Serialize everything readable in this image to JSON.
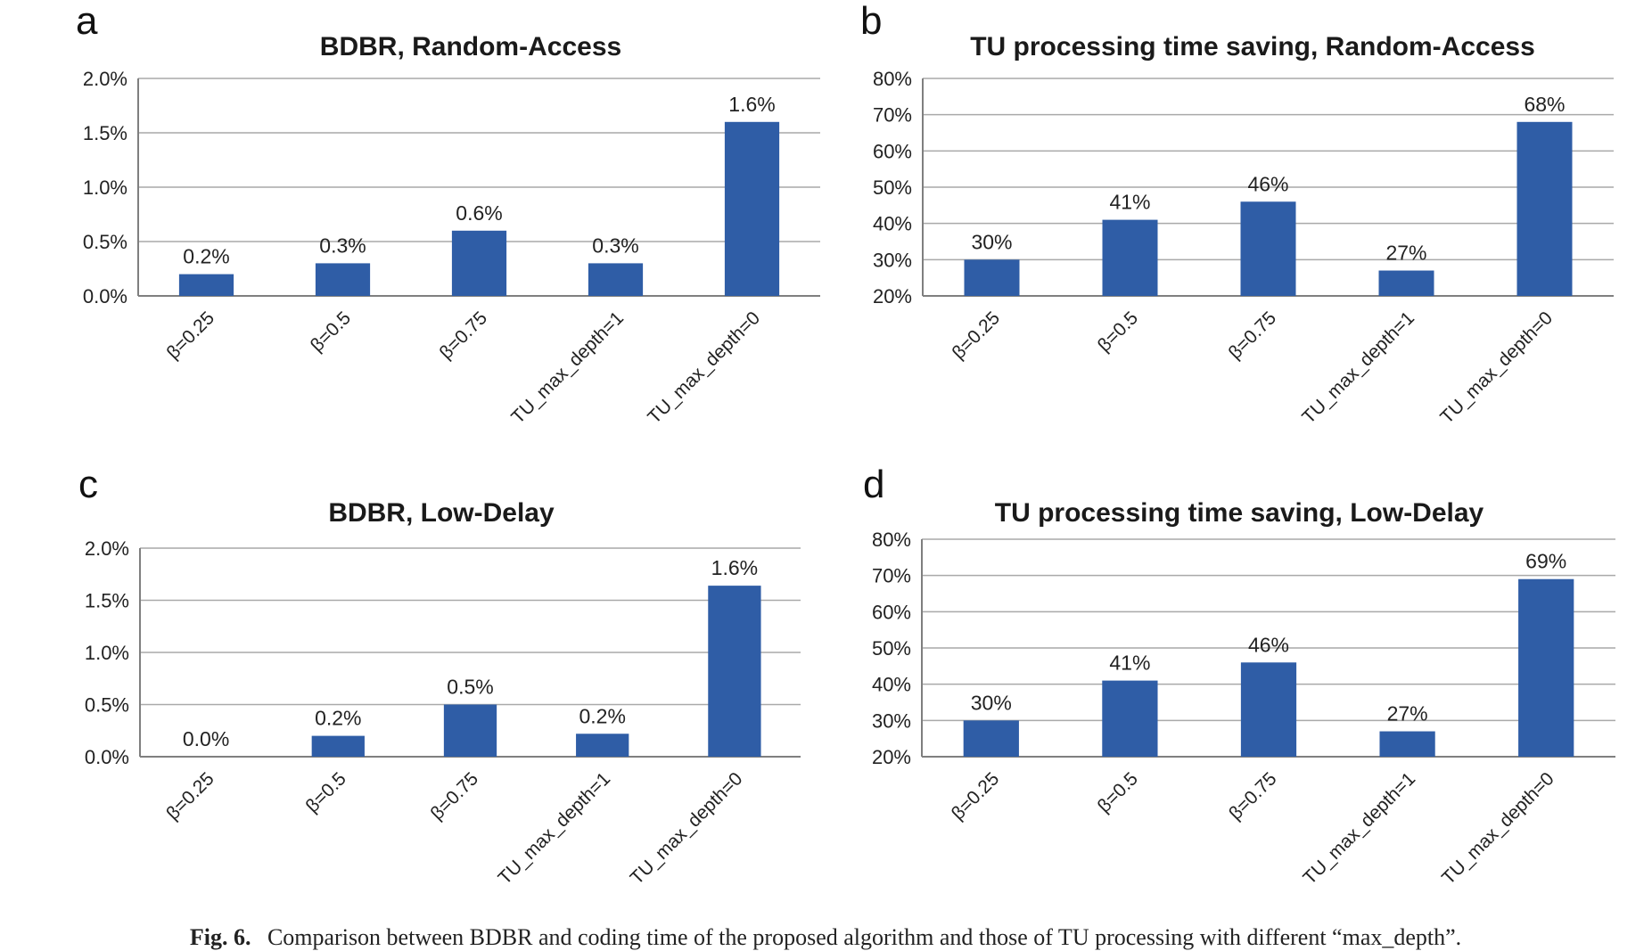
{
  "caption": {
    "label": "Fig. 6.",
    "text": "Comparison between BDBR and coding time of the proposed algorithm and those of TU processing with different “max_depth”."
  },
  "colors": {
    "bar": "#2f5da6",
    "grid": "#a9a9a9",
    "axis": "#7f7f7f"
  },
  "chart_data": [
    {
      "panel": "a",
      "type": "bar",
      "title": "BDBR, Random-Access",
      "categories": [
        "β=0.25",
        "β=0.5",
        "β=0.75",
        "TU_max_depth=1",
        "TU_max_depth=0"
      ],
      "values": [
        0.2,
        0.3,
        0.6,
        0.3,
        1.6
      ],
      "data_labels": [
        "0.2%",
        "0.3%",
        "0.6%",
        "0.3%",
        "1.6%"
      ],
      "ylim": [
        0,
        2.0
      ],
      "yticks": [
        "0.0%",
        "0.5%",
        "1.0%",
        "1.5%",
        "2.0%"
      ],
      "xlabel": "",
      "ylabel": "",
      "grid": true
    },
    {
      "panel": "b",
      "type": "bar",
      "title": "TU processing time saving, Random-Access",
      "categories": [
        "β=0.25",
        "β=0.5",
        "β=0.75",
        "TU_max_depth=1",
        "TU_max_depth=0"
      ],
      "values": [
        30,
        41,
        46,
        27,
        68
      ],
      "data_labels": [
        "30%",
        "41%",
        "46%",
        "27%",
        "68%"
      ],
      "ylim": [
        20,
        80
      ],
      "yticks": [
        "20%",
        "30%",
        "40%",
        "50%",
        "60%",
        "70%",
        "80%"
      ],
      "xlabel": "",
      "ylabel": "",
      "grid": true
    },
    {
      "panel": "c",
      "type": "bar",
      "title": "BDBR, Low-Delay",
      "categories": [
        "β=0.25",
        "β=0.5",
        "β=0.75",
        "TU_max_depth=1",
        "TU_max_depth=0"
      ],
      "values": [
        0.0,
        0.2,
        0.5,
        0.22,
        1.64
      ],
      "data_labels": [
        "0.0%",
        "0.2%",
        "0.5%",
        "0.2%",
        "1.6%"
      ],
      "ylim": [
        0,
        2.0
      ],
      "yticks": [
        "0.0%",
        "0.5%",
        "1.0%",
        "1.5%",
        "2.0%"
      ],
      "xlabel": "",
      "ylabel": "",
      "grid": true
    },
    {
      "panel": "d",
      "type": "bar",
      "title": "TU processing time saving, Low-Delay",
      "categories": [
        "β=0.25",
        "β=0.5",
        "β=0.75",
        "TU_max_depth=1",
        "TU_max_depth=0"
      ],
      "values": [
        30,
        41,
        46,
        27,
        69
      ],
      "data_labels": [
        "30%",
        "41%",
        "46%",
        "27%",
        "69%"
      ],
      "ylim": [
        20,
        80
      ],
      "yticks": [
        "20%",
        "30%",
        "40%",
        "50%",
        "60%",
        "70%",
        "80%"
      ],
      "xlabel": "",
      "ylabel": "",
      "grid": true
    }
  ]
}
